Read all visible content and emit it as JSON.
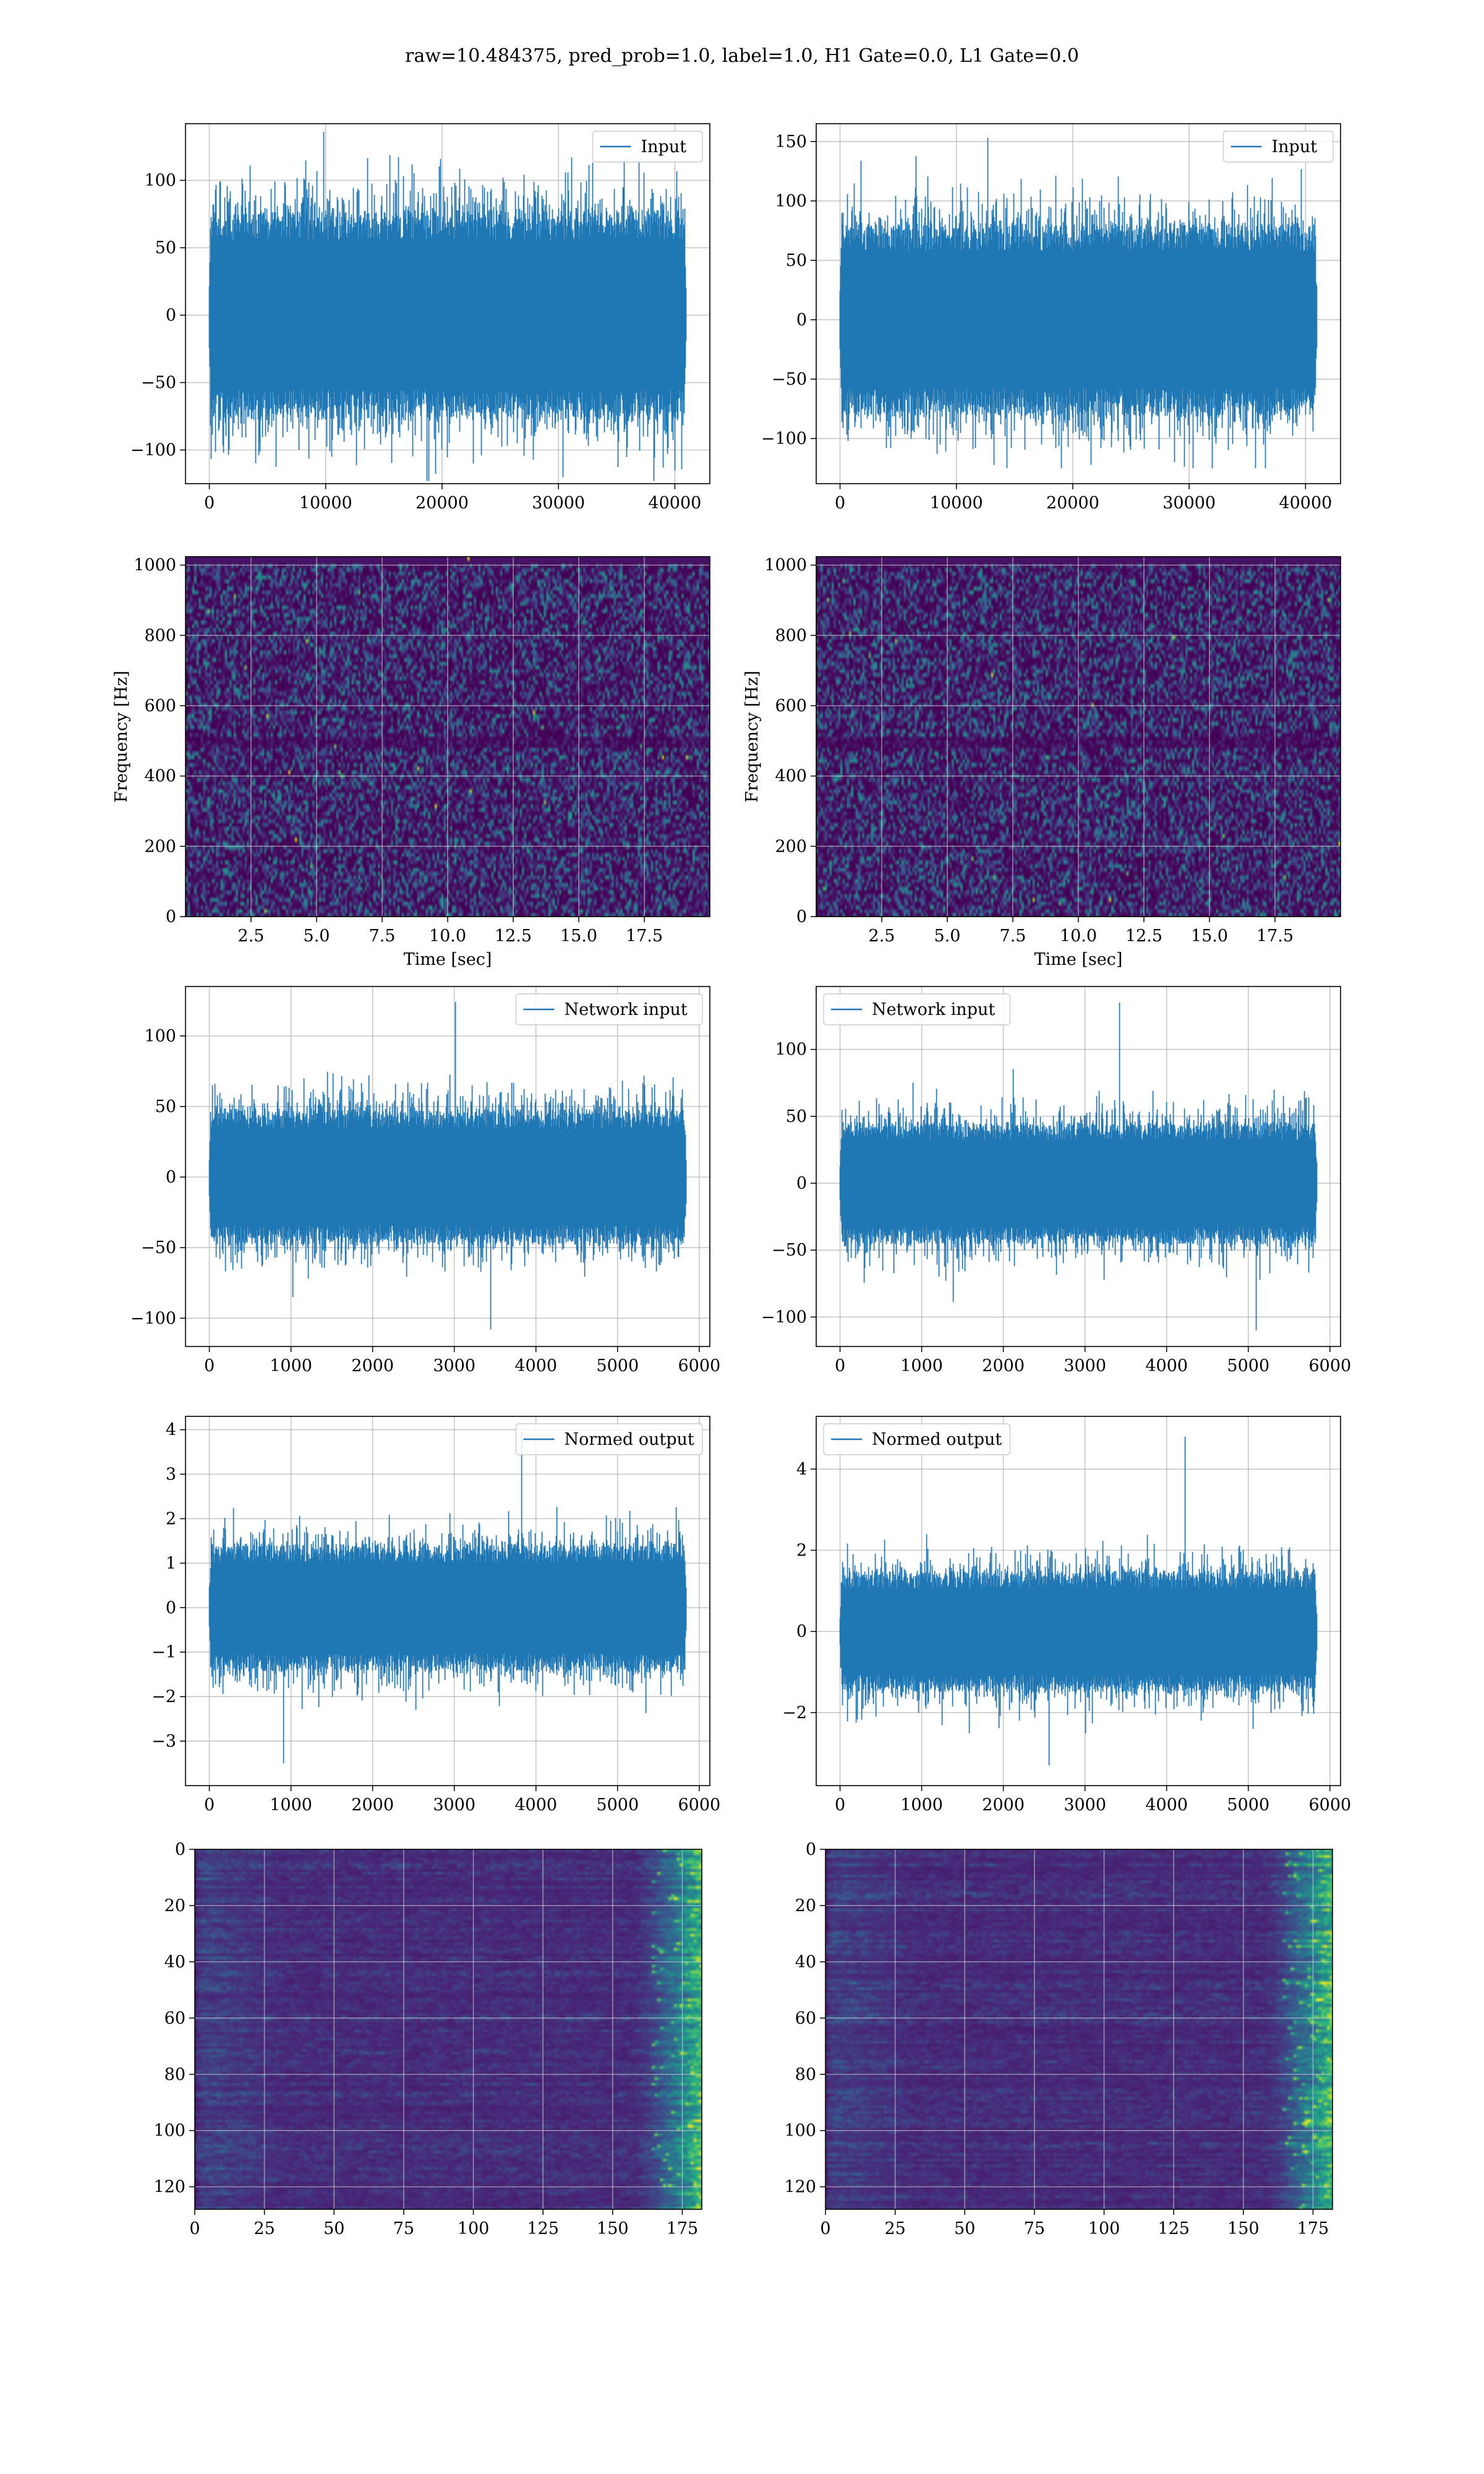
{
  "title": "raw=10.484375, pred_prob=1.0, label=1.0, H1 Gate=0.0, L1 Gate=0.0",
  "colors": {
    "series": "#1f77b4",
    "grid": "#b0b0b0",
    "viridis_low": "#440154",
    "viridis_mid": "#21918c",
    "viridis_high": "#fde725"
  },
  "chart_data": [
    {
      "id": "input-h1",
      "type": "line",
      "legend": "Input",
      "legend_position": "upper right",
      "xlim": [
        -2048,
        43008
      ],
      "ylim": [
        -125,
        142
      ],
      "xticks": [
        0,
        10000,
        20000,
        30000,
        40000
      ],
      "xticklabels": [
        "0",
        "10000",
        "20000",
        "30000",
        "40000"
      ],
      "yticks": [
        -100,
        -50,
        0,
        50,
        100
      ],
      "yticklabels": [
        "−100",
        "−50",
        "0",
        "50",
        "100"
      ],
      "n_points": 40960,
      "envelope": {
        "band": 65,
        "max": 136,
        "min": -123
      },
      "grid": true
    },
    {
      "id": "input-l1",
      "type": "line",
      "legend": "Input",
      "legend_position": "upper right",
      "xlim": [
        -2048,
        43008
      ],
      "ylim": [
        -138,
        165
      ],
      "xticks": [
        0,
        10000,
        20000,
        30000,
        40000
      ],
      "xticklabels": [
        "0",
        "10000",
        "20000",
        "30000",
        "40000"
      ],
      "yticks": [
        -100,
        -50,
        0,
        50,
        100,
        150
      ],
      "yticklabels": [
        "−100",
        "−50",
        "0",
        "50",
        "100",
        "150"
      ],
      "n_points": 40960,
      "envelope": {
        "band": 68,
        "max": 153,
        "min": -125
      },
      "grid": true
    },
    {
      "id": "spectrogram-h1",
      "type": "heatmap",
      "xlabel": "Time [sec]",
      "ylabel": "Frequency [Hz]",
      "xlim": [
        0,
        20
      ],
      "ylim": [
        0,
        1024
      ],
      "xticks": [
        2.5,
        5,
        7.5,
        10,
        12.5,
        15,
        17.5
      ],
      "xticklabels": [
        "2.5",
        "5.0",
        "7.5",
        "10.0",
        "12.5",
        "15.0",
        "17.5"
      ],
      "yticks": [
        0,
        200,
        400,
        600,
        800,
        1000
      ],
      "yticklabels": [
        "0",
        "200",
        "400",
        "600",
        "800",
        "1000"
      ],
      "colormap": "viridis",
      "grid": true
    },
    {
      "id": "spectrogram-l1",
      "type": "heatmap",
      "xlabel": "Time [sec]",
      "ylabel": "Frequency [Hz]",
      "xlim": [
        0,
        20
      ],
      "ylim": [
        0,
        1024
      ],
      "xticks": [
        2.5,
        5,
        7.5,
        10,
        12.5,
        15,
        17.5
      ],
      "xticklabels": [
        "2.5",
        "5.0",
        "7.5",
        "10.0",
        "12.5",
        "15.0",
        "17.5"
      ],
      "yticks": [
        0,
        200,
        400,
        600,
        800,
        1000
      ],
      "yticklabels": [
        "0",
        "200",
        "400",
        "600",
        "800",
        "1000"
      ],
      "colormap": "viridis",
      "grid": true
    },
    {
      "id": "network-input-h1",
      "type": "line",
      "legend": "Network input",
      "legend_position": "upper right",
      "xlim": [
        -292,
        6130
      ],
      "ylim": [
        -120,
        135
      ],
      "xticks": [
        0,
        1000,
        2000,
        3000,
        4000,
        5000,
        6000
      ],
      "xticklabels": [
        "0",
        "1000",
        "2000",
        "3000",
        "4000",
        "5000",
        "6000"
      ],
      "yticks": [
        -100,
        -50,
        0,
        50,
        100
      ],
      "yticklabels": [
        "−100",
        "−50",
        "0",
        "50",
        "100"
      ],
      "n_points": 5840,
      "envelope": {
        "band": 40,
        "max": 124,
        "min": -108
      },
      "grid": true
    },
    {
      "id": "network-input-l1",
      "type": "line",
      "legend": "Network input",
      "legend_position": "upper left",
      "xlim": [
        -292,
        6130
      ],
      "ylim": [
        -122,
        147
      ],
      "xticks": [
        0,
        1000,
        2000,
        3000,
        4000,
        5000,
        6000
      ],
      "xticklabels": [
        "0",
        "1000",
        "2000",
        "3000",
        "4000",
        "5000",
        "6000"
      ],
      "yticks": [
        -100,
        -50,
        0,
        50,
        100
      ],
      "yticklabels": [
        "−100",
        "−50",
        "0",
        "50",
        "100"
      ],
      "n_points": 5840,
      "envelope": {
        "band": 38,
        "max": 135,
        "min": -110
      },
      "grid": true
    },
    {
      "id": "normed-output-h1",
      "type": "line",
      "legend": "Normed output",
      "legend_position": "upper right",
      "xlim": [
        -292,
        6130
      ],
      "ylim": [
        -4.0,
        4.3
      ],
      "xticks": [
        0,
        1000,
        2000,
        3000,
        4000,
        5000,
        6000
      ],
      "xticklabels": [
        "0",
        "1000",
        "2000",
        "3000",
        "4000",
        "5000",
        "6000"
      ],
      "yticks": [
        -3,
        -2,
        -1,
        0,
        1,
        2,
        3,
        4
      ],
      "yticklabels": [
        "−3",
        "−2",
        "−1",
        "0",
        "1",
        "2",
        "3",
        "4"
      ],
      "n_points": 5840,
      "envelope": {
        "band": 1.2,
        "max": 3.95,
        "min": -3.5
      },
      "grid": true
    },
    {
      "id": "normed-output-l1",
      "type": "line",
      "legend": "Normed output",
      "legend_position": "upper left",
      "xlim": [
        -292,
        6130
      ],
      "ylim": [
        -3.8,
        5.3
      ],
      "xticks": [
        0,
        1000,
        2000,
        3000,
        4000,
        5000,
        6000
      ],
      "xticklabels": [
        "0",
        "1000",
        "2000",
        "3000",
        "4000",
        "5000",
        "6000"
      ],
      "yticks": [
        -2,
        0,
        2,
        4
      ],
      "yticklabels": [
        "−2",
        "0",
        "2",
        "4"
      ],
      "n_points": 5840,
      "envelope": {
        "band": 1.25,
        "max": 4.8,
        "min": -3.3
      },
      "grid": true
    },
    {
      "id": "features-h1",
      "type": "heatmap",
      "xlim": [
        0,
        182
      ],
      "ylim": [
        128,
        0
      ],
      "xticks": [
        0,
        25,
        50,
        75,
        100,
        125,
        150,
        175
      ],
      "xticklabels": [
        "0",
        "25",
        "50",
        "75",
        "100",
        "125",
        "150",
        "175"
      ],
      "yticks": [
        0,
        20,
        40,
        60,
        80,
        100,
        120
      ],
      "yticklabels": [
        "0",
        "20",
        "40",
        "60",
        "80",
        "100",
        "120"
      ],
      "colormap": "viridis",
      "grid": true
    },
    {
      "id": "features-l1",
      "type": "heatmap",
      "xlim": [
        0,
        182
      ],
      "ylim": [
        128,
        0
      ],
      "xticks": [
        0,
        25,
        50,
        75,
        100,
        125,
        150,
        175
      ],
      "xticklabels": [
        "0",
        "25",
        "50",
        "75",
        "100",
        "125",
        "150",
        "175"
      ],
      "yticks": [
        0,
        20,
        40,
        60,
        80,
        100,
        120
      ],
      "yticklabels": [
        "0",
        "20",
        "40",
        "60",
        "80",
        "100",
        "120"
      ],
      "colormap": "viridis",
      "grid": true
    }
  ]
}
